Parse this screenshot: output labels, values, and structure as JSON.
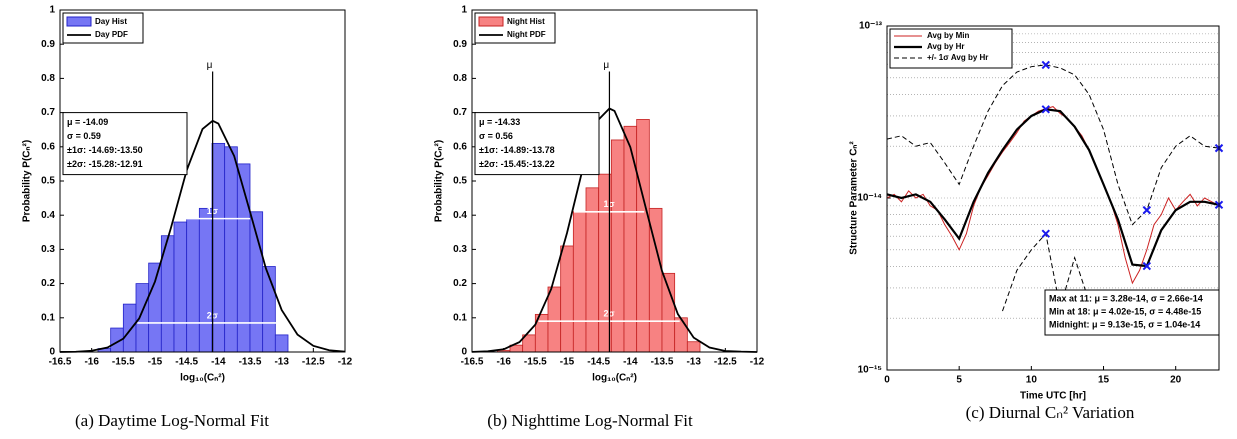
{
  "chart_data": [
    {
      "type": "histogram",
      "caption": "(a)  Daytime Log-Normal Fit",
      "xlabel": "log₁₀(Cₙ²)",
      "ylabel": "Probability P(Cₙ²)",
      "name": "Day Hist",
      "color": "#7676f4",
      "edgecolor": "#2222c8",
      "bins": [
        -15.9,
        -15.7,
        -15.5,
        -15.3,
        -15.1,
        -14.9,
        -14.7,
        -14.5,
        -14.3,
        -14.1,
        -13.9,
        -13.7,
        -13.5,
        -13.3,
        -13.1,
        -12.9
      ],
      "values": [
        0.01,
        0.07,
        0.14,
        0.2,
        0.26,
        0.34,
        0.38,
        0.39,
        0.42,
        0.61,
        0.6,
        0.55,
        0.41,
        0.25,
        0.05
      ],
      "pdf": {
        "name": "Day PDF",
        "color": "#000000",
        "x": [
          -16.5,
          -16.25,
          -16,
          -15.75,
          -15.5,
          -15.25,
          -15,
          -14.75,
          -14.5,
          -14.25,
          -14.09,
          -14,
          -13.75,
          -13.5,
          -13.25,
          -13,
          -12.75,
          -12.5,
          -12.25,
          -12
        ],
        "values": [
          0.0002,
          0.0008,
          0.0036,
          0.013,
          0.039,
          0.098,
          0.206,
          0.362,
          0.531,
          0.652,
          0.676,
          0.668,
          0.573,
          0.41,
          0.245,
          0.123,
          0.051,
          0.018,
          0.005,
          0.001
        ]
      },
      "mu_line": {
        "label": "μ",
        "x": -14.09,
        "y": [
          0,
          0.82
        ]
      },
      "sigma_bands": [
        {
          "label": "1σ",
          "x": [
            -14.69,
            -13.5
          ],
          "y": 0.39
        },
        {
          "label": "2σ",
          "x": [
            -15.28,
            -12.91
          ],
          "y": 0.085
        }
      ],
      "stats": [
        "μ = -14.09",
        "σ = 0.59",
        "±1σ: -14.69:-13.50",
        "±2σ: -15.28:-12.91"
      ],
      "xlim": [
        -16.5,
        -12
      ],
      "xticks": [
        -16.5,
        -16,
        -15.5,
        -15,
        -14.5,
        -14,
        -13.5,
        -13,
        -12.5,
        -12
      ],
      "ylim": [
        0,
        1
      ],
      "yticks": [
        0,
        0.1,
        0.2,
        0.3,
        0.4,
        0.5,
        0.6,
        0.7,
        0.8,
        0.9,
        1
      ],
      "legend": "upper left"
    },
    {
      "type": "histogram",
      "caption": "(b)  Nighttime Log-Normal Fit",
      "xlabel": "log₁₀(Cₙ²)",
      "ylabel": "Probability P(Cₙ²)",
      "name": "Night Hist",
      "color": "#f78282",
      "edgecolor": "#c42222",
      "bins": [
        -16.1,
        -15.9,
        -15.7,
        -15.5,
        -15.3,
        -15.1,
        -14.9,
        -14.7,
        -14.5,
        -14.3,
        -14.1,
        -13.9,
        -13.7,
        -13.5,
        -13.3,
        -13.1,
        -12.9
      ],
      "values": [
        0.005,
        0.02,
        0.05,
        0.11,
        0.19,
        0.31,
        0.41,
        0.48,
        0.52,
        0.62,
        0.66,
        0.68,
        0.42,
        0.23,
        0.1,
        0.03
      ],
      "pdf": {
        "name": "Night PDF",
        "color": "#000000",
        "x": [
          -16.5,
          -16.25,
          -16,
          -15.75,
          -15.5,
          -15.25,
          -15,
          -14.75,
          -14.5,
          -14.33,
          -14.25,
          -14,
          -13.75,
          -13.5,
          -13.25,
          -13,
          -12.75,
          -12.5,
          -12.25,
          -12
        ],
        "values": [
          0.0004,
          0.002,
          0.008,
          0.029,
          0.08,
          0.184,
          0.348,
          0.537,
          0.68,
          0.712,
          0.705,
          0.599,
          0.417,
          0.237,
          0.111,
          0.042,
          0.013,
          0.003,
          0.001,
          0.0001
        ]
      },
      "mu_line": {
        "label": "μ",
        "x": -14.33,
        "y": [
          0,
          0.82
        ]
      },
      "sigma_bands": [
        {
          "label": "1σ",
          "x": [
            -14.89,
            -13.78
          ],
          "y": 0.41
        },
        {
          "label": "2σ",
          "x": [
            -15.45,
            -13.22
          ],
          "y": 0.09
        }
      ],
      "stats": [
        "μ = -14.33",
        "σ = 0.56",
        "±1σ: -14.89:-13.78",
        "±2σ: -15.45:-13.22"
      ],
      "xlim": [
        -16.5,
        -12
      ],
      "xticks": [
        -16.5,
        -16,
        -15.5,
        -15,
        -14.5,
        -14,
        -13.5,
        -13,
        -12.5,
        -12
      ],
      "ylim": [
        0,
        1
      ],
      "yticks": [
        0,
        0.1,
        0.2,
        0.3,
        0.4,
        0.5,
        0.6,
        0.7,
        0.8,
        0.9,
        1
      ],
      "legend": "upper left"
    },
    {
      "type": "line",
      "caption": "(c)  Diurnal Cₙ² Variation",
      "xlabel": "Time UTC [hr]",
      "ylabel": "Structure Parameter Cₙ²",
      "log_y": true,
      "grid": true,
      "legend": "upper left",
      "xlim": [
        0,
        23
      ],
      "xticks": [
        0,
        5,
        10,
        15,
        20
      ],
      "ylim": [
        1e-15,
        1e-13
      ],
      "yticks": [
        {
          "value": 1e-15,
          "label": "10⁻¹⁵"
        },
        {
          "value": 1e-14,
          "label": "10⁻¹⁴"
        },
        {
          "value": 1e-13,
          "label": "10⁻¹³"
        }
      ],
      "yminor": [
        2e-15,
        3e-15,
        4e-15,
        5e-15,
        6e-15,
        7e-15,
        8e-15,
        9e-15,
        2e-14,
        3e-14,
        4e-14,
        5e-14,
        6e-14,
        7e-14,
        8e-14,
        9e-14
      ],
      "series": [
        {
          "name": "Avg by Min",
          "color": "#cc2222",
          "width": 1,
          "x": [
            0,
            0.5,
            1,
            1.5,
            2,
            2.5,
            3,
            3.5,
            4,
            4.5,
            5,
            5.5,
            6,
            6.5,
            7,
            7.5,
            8,
            8.5,
            9,
            9.5,
            10,
            10.5,
            11,
            11.5,
            12,
            12.5,
            13,
            13.5,
            14,
            14.5,
            15,
            15.5,
            16,
            16.5,
            17,
            17.5,
            18,
            18.5,
            19,
            19.5,
            20,
            20.5,
            21,
            21.5,
            22,
            22.5,
            23
          ],
          "values": [
            1e-14,
            1.05e-14,
            9.5e-15,
            1.1e-14,
            1e-14,
            1.05e-14,
            9e-15,
            8.5e-15,
            7e-15,
            6e-15,
            5e-15,
            6.2e-15,
            9e-15,
            1.15e-14,
            1.35e-14,
            1.6e-14,
            1.85e-14,
            2.1e-14,
            2.4e-14,
            2.8e-14,
            3e-14,
            3.2e-14,
            3.3e-14,
            3.4e-14,
            3.1e-14,
            2.9e-14,
            2.6e-14,
            2.3e-14,
            1.9e-14,
            1.5e-14,
            1.2e-14,
            9.5e-15,
            7e-15,
            4.5e-15,
            3.2e-15,
            3.8e-15,
            5e-15,
            7e-15,
            8e-15,
            1e-14,
            8.5e-15,
            9.5e-15,
            1.05e-14,
            9e-15,
            1e-14,
            9.5e-15,
            9e-15
          ]
        },
        {
          "name": "Avg by Hr",
          "color": "#000000",
          "width": 2.2,
          "x": [
            0,
            1,
            2,
            3,
            4,
            5,
            6,
            7,
            8,
            9,
            10,
            11,
            12,
            13,
            14,
            15,
            16,
            17,
            18,
            19,
            20,
            21,
            22,
            23
          ],
          "values": [
            1.05e-14,
            1e-14,
            1.05e-14,
            9.5e-15,
            7.5e-15,
            5.8e-15,
            9.5e-15,
            1.4e-14,
            1.9e-14,
            2.5e-14,
            3e-14,
            3.28e-14,
            3.2e-14,
            2.6e-14,
            1.9e-14,
            1.2e-14,
            7.5e-15,
            4.1e-15,
            4.02e-15,
            6.5e-15,
            8.5e-15,
            9.5e-15,
            9.5e-15,
            9.13e-15
          ]
        },
        {
          "name": "+/- 1σ Avg by Hr",
          "color": "#000000",
          "width": 1,
          "dash": true,
          "x": [
            0,
            1,
            2,
            3,
            4,
            5,
            6,
            7,
            8,
            9,
            10,
            11,
            12,
            13,
            14,
            15,
            16,
            17,
            18,
            19,
            20,
            21,
            22,
            23
          ],
          "values": [
            2.2e-14,
            2.3e-14,
            2e-14,
            2.1e-14,
            1.6e-14,
            1.2e-14,
            2e-14,
            3.2e-14,
            4.5e-14,
            5.4e-14,
            5.8e-14,
            5.94e-14,
            5.7e-14,
            5.2e-14,
            4e-14,
            2.5e-14,
            1.2e-14,
            7e-15,
            8.5e-15,
            1.5e-14,
            2e-14,
            2.3e-14,
            2e-14,
            1.95e-14
          ]
        },
        {
          "color": "#000000",
          "width": 1,
          "dash": true,
          "x": [
            0,
            1,
            2,
            3,
            4,
            5,
            6,
            7,
            8,
            9,
            10,
            11,
            12,
            13,
            14,
            15,
            16,
            17,
            18,
            19,
            20,
            21,
            22,
            23
          ],
          "values": [
            null,
            null,
            null,
            null,
            null,
            null,
            null,
            null,
            2.2e-15,
            3.8e-15,
            5e-15,
            6.2e-15,
            2.3e-15,
            4.5e-15,
            2.5e-15,
            null,
            null,
            null,
            null,
            null,
            null,
            null,
            null,
            null
          ]
        }
      ],
      "markers": {
        "color": "#1a1aee",
        "x": [
          11,
          11,
          11,
          18,
          18,
          23,
          23
        ],
        "values": [
          5.94e-14,
          3.28e-14,
          6.2e-15,
          8.5e-15,
          4.02e-15,
          1.95e-14,
          9.13e-15
        ]
      },
      "stats": [
        "Max at 11: μ = 3.28e-14, σ = 2.66e-14",
        "Min at 18: μ = 4.02e-15, σ = 4.48e-15",
        "Midnight: μ = 9.13e-15, σ = 1.04e-14"
      ]
    }
  ]
}
